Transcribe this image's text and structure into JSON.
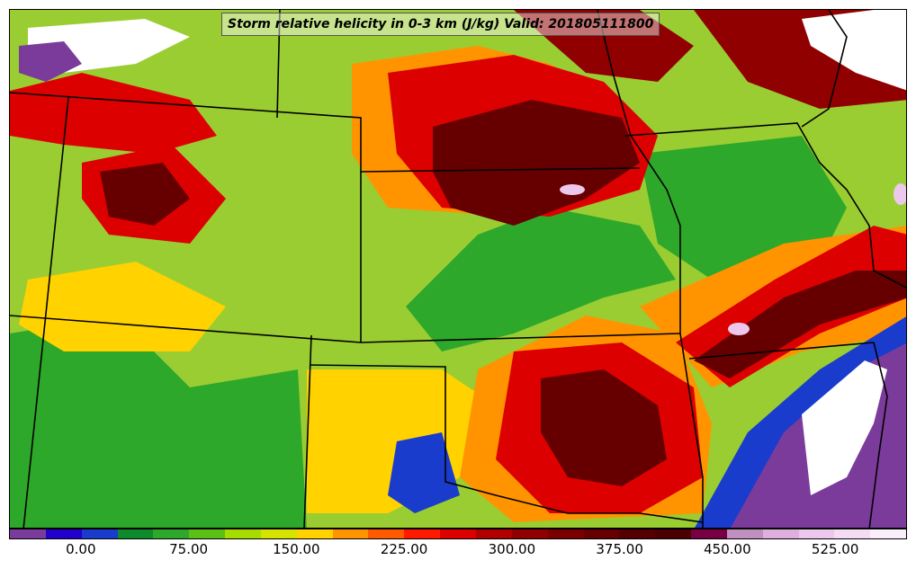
{
  "title": "Storm relative helicity in 0-3 km (J/kg) Valid: 201805111800",
  "colorbar": {
    "colors": [
      "#7b3b9b",
      "#2200cc",
      "#1a3ccc",
      "#0f8a2a",
      "#2ea82a",
      "#5cc014",
      "#a6dc00",
      "#d4e400",
      "#ffd200",
      "#ff9400",
      "#ff5a00",
      "#ff1a00",
      "#dd0000",
      "#b00000",
      "#900000",
      "#7a0000",
      "#660000",
      "#550000",
      "#4a0000",
      "#770044",
      "#c090c0",
      "#dfb0df",
      "#ecc8ec",
      "#f5dcf5",
      "#fbeefb"
    ],
    "tick_labels": [
      "0.00",
      "75.00",
      "150.00",
      "225.00",
      "300.00",
      "375.00",
      "450.00",
      "525.00"
    ],
    "tick_values": [
      0,
      75,
      150,
      225,
      300,
      375,
      450,
      525
    ],
    "min": -50,
    "max": 575
  },
  "map": {
    "fill_colors": {
      "green": "#2ea82a",
      "dark_green": "#0f8a2a",
      "light_green": "#a6dc00",
      "yellow": "#ffd200",
      "orange": "#ff9400",
      "red": "#dd0000",
      "dark_red": "#900000",
      "maroon": "#550000",
      "blue": "#1a3ccc",
      "purple": "#7b3b9b",
      "white": "#ffffff",
      "pink": "#ecc8ec"
    }
  }
}
